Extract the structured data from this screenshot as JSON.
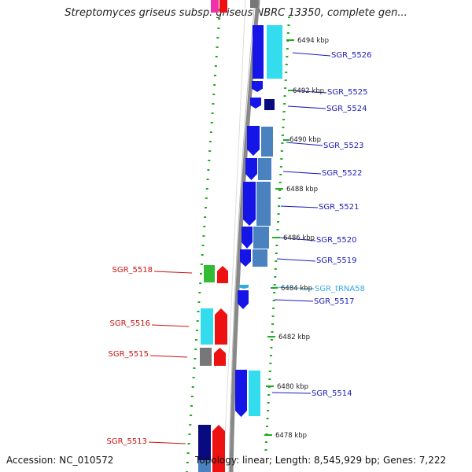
{
  "title": "Streptomyces griseus subsp. griseus NBRC 13350, complete gen...",
  "footer": {
    "accession": "Accession: NC_010572",
    "summary": "Topology: linear; Length: 8,545,929 bp; Genes: 7,222"
  },
  "colors": {
    "forward_gene": "#1515e8",
    "forward_dark": "#0a0a80",
    "cds_light": "#4a82c0",
    "cyan": "#33ddee",
    "red": "#ee1111",
    "green": "#33bb33",
    "gray": "#777777",
    "pink": "#ee33aa",
    "right_label": "#1a1ab8",
    "left_label": "#cc1111",
    "trna_label": "#33aadd",
    "backbone": "#888888",
    "tick": "#22aa22"
  },
  "right_labels": [
    {
      "text": "SGR_5526"
    },
    {
      "text": "SGR_5525"
    },
    {
      "text": "SGR_5524"
    },
    {
      "text": "SGR_5523"
    },
    {
      "text": "SGR_5522"
    },
    {
      "text": "SGR_5521"
    },
    {
      "text": "SGR_5520"
    },
    {
      "text": "SGR_5519"
    },
    {
      "text": "SGR_tRNA58"
    },
    {
      "text": "SGR_5517"
    },
    {
      "text": "SGR_5514"
    }
  ],
  "left_labels": [
    {
      "text": "SGR_5518"
    },
    {
      "text": "SGR_5516"
    },
    {
      "text": "SGR_5515"
    },
    {
      "text": "SGR_5513"
    }
  ],
  "kbp_labels": [
    {
      "text": "6494 kbp"
    },
    {
      "text": "6492 kbp"
    },
    {
      "text": "6490 kbp"
    },
    {
      "text": "6488 kbp"
    },
    {
      "text": "6486 kbp"
    },
    {
      "text": "6484 kbp"
    },
    {
      "text": "6482 kbp"
    },
    {
      "text": "6480 kbp"
    },
    {
      "text": "6478 kbp"
    }
  ]
}
